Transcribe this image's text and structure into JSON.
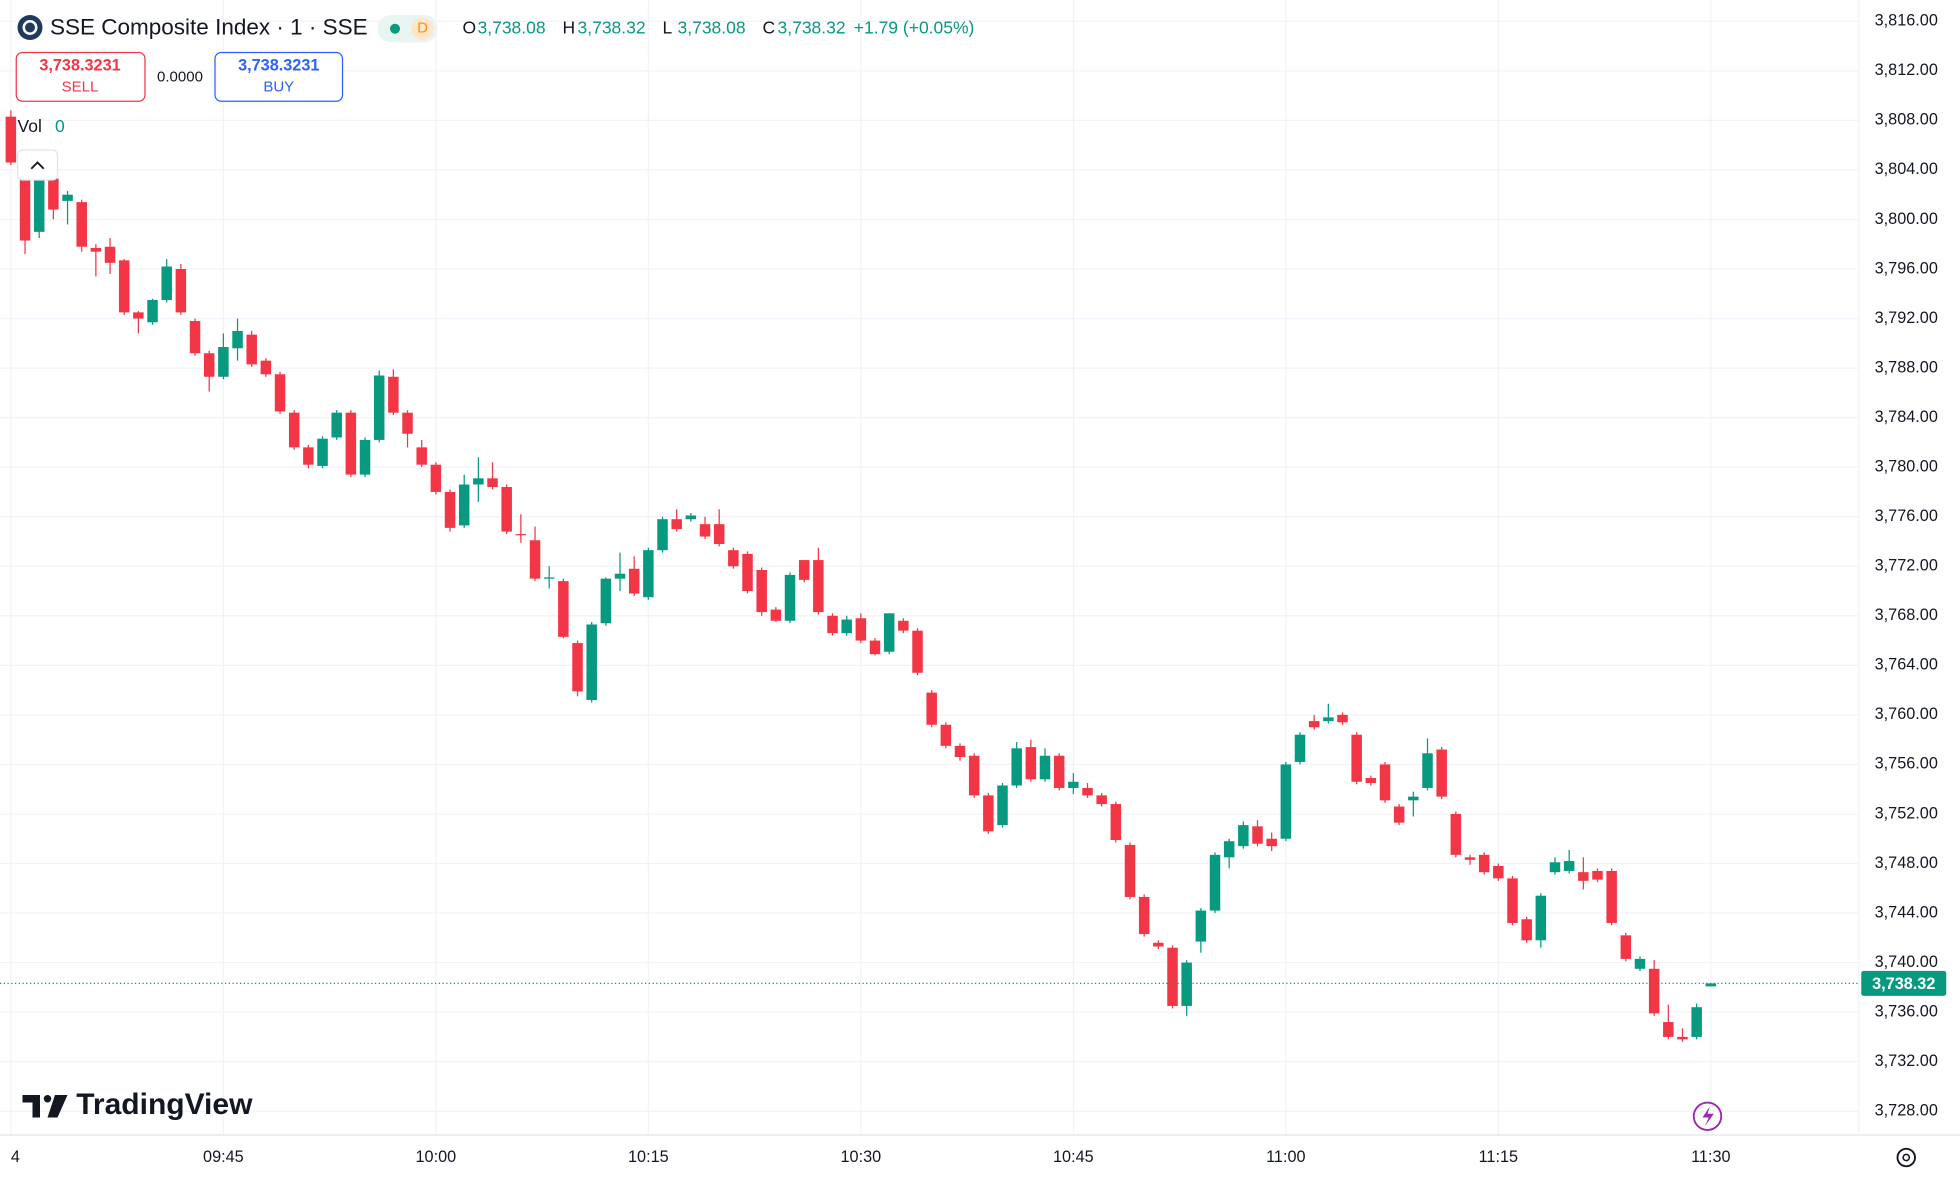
{
  "chart_data": {
    "type": "candlestick",
    "title": "SSE Composite Index · 1 · SSE",
    "categories": [
      "09:30",
      "09:31",
      "09:32",
      "09:33",
      "09:34",
      "09:35",
      "09:36",
      "09:37",
      "09:38",
      "09:39",
      "09:40",
      "09:41",
      "09:42",
      "09:43",
      "09:44",
      "09:45",
      "09:46",
      "09:47",
      "09:48",
      "09:49",
      "09:50",
      "09:51",
      "09:52",
      "09:53",
      "09:54",
      "09:55",
      "09:56",
      "09:57",
      "09:58",
      "09:59",
      "10:00",
      "10:01",
      "10:02",
      "10:03",
      "10:04",
      "10:05",
      "10:06",
      "10:07",
      "10:08",
      "10:09",
      "10:10",
      "10:11",
      "10:12",
      "10:13",
      "10:14",
      "10:15",
      "10:16",
      "10:17",
      "10:18",
      "10:19",
      "10:20",
      "10:21",
      "10:22",
      "10:23",
      "10:24",
      "10:25",
      "10:26",
      "10:27",
      "10:28",
      "10:29",
      "10:30",
      "10:31",
      "10:32",
      "10:33",
      "10:34",
      "10:35",
      "10:36",
      "10:37",
      "10:38",
      "10:39",
      "10:40",
      "10:41",
      "10:42",
      "10:43",
      "10:44",
      "10:45",
      "10:46",
      "10:47",
      "10:48",
      "10:49",
      "10:50",
      "10:51",
      "10:52",
      "10:53",
      "10:54",
      "10:55",
      "10:56",
      "10:57",
      "10:58",
      "10:59",
      "11:00",
      "11:01",
      "11:02",
      "11:03",
      "11:04",
      "11:05",
      "11:06",
      "11:07",
      "11:08",
      "11:09",
      "11:10",
      "11:11",
      "11:12",
      "11:13",
      "11:14",
      "11:15",
      "11:16",
      "11:17",
      "11:18",
      "11:19",
      "11:20",
      "11:21",
      "11:22",
      "11:23",
      "11:24",
      "11:25",
      "11:26",
      "11:27",
      "11:28",
      "11:29",
      "11:30"
    ],
    "open": [
      3808.3,
      3803.6,
      3799.0,
      3803.3,
      3801.5,
      3801.4,
      3797.7,
      3797.8,
      3796.7,
      3792.5,
      3791.7,
      3793.5,
      3796.0,
      3791.8,
      3789.2,
      3787.3,
      3789.6,
      3790.7,
      3788.6,
      3787.5,
      3784.4,
      3781.6,
      3780.1,
      3782.4,
      3784.4,
      3779.4,
      3782.2,
      3787.3,
      3784.4,
      3781.6,
      3780.2,
      3778.0,
      3775.3,
      3778.6,
      3779.1,
      3778.4,
      3774.6,
      3774.1,
      3771.0,
      3770.8,
      3765.8,
      3761.2,
      3767.4,
      3771.0,
      3771.8,
      3769.5,
      3773.3,
      3775.8,
      3775.8,
      3775.4,
      3775.4,
      3773.3,
      3773.0,
      3771.7,
      3768.5,
      3767.6,
      3772.5,
      3772.5,
      3768.0,
      3766.6,
      3767.8,
      3766.0,
      3765.1,
      3767.6,
      3766.8,
      3761.8,
      3759.2,
      3757.5,
      3756.7,
      3753.5,
      3751.1,
      3754.3,
      3757.4,
      3754.8,
      3756.7,
      3754.1,
      3754.1,
      3753.5,
      3752.8,
      3749.5,
      3745.3,
      3741.6,
      3741.2,
      3736.5,
      3741.7,
      3744.2,
      3748.5,
      3749.4,
      3751.0,
      3750.0,
      3750.0,
      3756.2,
      3759.5,
      3759.5,
      3760.0,
      3758.4,
      3754.9,
      3756.0,
      3752.6,
      3753.1,
      3754.1,
      3757.2,
      3752.0,
      3748.5,
      3748.7,
      3747.8,
      3746.8,
      3743.5,
      3741.8,
      3747.3,
      3747.4,
      3747.3,
      3747.4,
      3747.4,
      3742.2,
      3739.5,
      3739.5,
      3735.2,
      3734.0,
      3734.0,
      3738.08
    ],
    "high": [
      3808.8,
      3804.0,
      3804.0,
      3804.2,
      3802.3,
      3801.6,
      3798.0,
      3798.5,
      3796.8,
      3792.6,
      3793.6,
      3796.8,
      3796.4,
      3792.0,
      3789.4,
      3790.8,
      3792.0,
      3791.0,
      3788.8,
      3787.7,
      3784.6,
      3781.8,
      3782.5,
      3784.6,
      3784.6,
      3782.4,
      3787.8,
      3787.9,
      3784.6,
      3782.2,
      3780.4,
      3778.2,
      3779.4,
      3780.8,
      3780.4,
      3778.6,
      3776.2,
      3775.2,
      3772.0,
      3771.0,
      3766.0,
      3767.5,
      3771.1,
      3773.1,
      3772.8,
      3773.5,
      3776.0,
      3776.6,
      3776.3,
      3776.0,
      3776.6,
      3773.5,
      3773.2,
      3771.9,
      3768.7,
      3771.5,
      3772.5,
      3773.5,
      3768.2,
      3768.0,
      3768.2,
      3766.2,
      3768.2,
      3767.8,
      3767.0,
      3762.0,
      3759.4,
      3757.7,
      3756.9,
      3753.7,
      3754.5,
      3757.8,
      3758.0,
      3757.3,
      3756.9,
      3755.3,
      3754.5,
      3753.7,
      3753.0,
      3749.7,
      3745.5,
      3741.8,
      3741.4,
      3740.2,
      3744.4,
      3748.9,
      3750.0,
      3751.4,
      3751.5,
      3750.5,
      3756.2,
      3758.6,
      3760.0,
      3760.9,
      3760.2,
      3758.6,
      3755.1,
      3756.2,
      3752.8,
      3753.8,
      3758.1,
      3757.4,
      3752.2,
      3748.7,
      3748.9,
      3748.0,
      3747.0,
      3743.7,
      3745.6,
      3748.5,
      3749.1,
      3748.5,
      3747.6,
      3747.6,
      3742.4,
      3740.5,
      3740.2,
      3736.6,
      3734.7,
      3736.7,
      3738.32
    ],
    "low": [
      3804.4,
      3797.2,
      3798.5,
      3800.0,
      3799.6,
      3797.4,
      3795.4,
      3795.6,
      3792.3,
      3790.8,
      3791.5,
      3793.3,
      3792.3,
      3789.0,
      3786.1,
      3787.1,
      3788.6,
      3788.1,
      3787.3,
      3784.3,
      3781.4,
      3779.9,
      3779.9,
      3782.2,
      3779.2,
      3779.2,
      3782.0,
      3784.2,
      3781.6,
      3780.0,
      3777.8,
      3774.8,
      3775.1,
      3777.2,
      3778.2,
      3774.6,
      3773.9,
      3770.8,
      3770.2,
      3766.2,
      3761.5,
      3761.0,
      3767.2,
      3770.0,
      3769.6,
      3769.3,
      3773.1,
      3774.8,
      3775.6,
      3774.2,
      3773.6,
      3771.8,
      3769.8,
      3768.0,
      3767.5,
      3767.4,
      3770.7,
      3768.1,
      3766.4,
      3766.4,
      3765.8,
      3764.8,
      3764.9,
      3766.6,
      3763.2,
      3759.0,
      3757.3,
      3756.3,
      3753.3,
      3750.4,
      3750.9,
      3754.1,
      3754.6,
      3754.6,
      3753.9,
      3753.6,
      3753.3,
      3752.6,
      3749.7,
      3745.1,
      3742.1,
      3741.1,
      3736.3,
      3735.7,
      3740.8,
      3744.0,
      3747.6,
      3749.2,
      3749.4,
      3749.0,
      3749.8,
      3756.0,
      3758.8,
      3759.3,
      3759.2,
      3754.4,
      3754.3,
      3752.9,
      3751.1,
      3751.8,
      3753.9,
      3753.2,
      3748.5,
      3747.9,
      3747.1,
      3746.6,
      3743.0,
      3741.6,
      3741.2,
      3747.1,
      3747.2,
      3745.9,
      3746.5,
      3743.0,
      3740.1,
      3739.3,
      3735.7,
      3733.8,
      3733.6,
      3733.8,
      3738.08
    ],
    "close": [
      3804.6,
      3798.3,
      3803.3,
      3800.8,
      3802.0,
      3797.8,
      3797.4,
      3796.5,
      3792.5,
      3792.0,
      3793.5,
      3796.2,
      3792.5,
      3789.2,
      3787.3,
      3789.7,
      3791.0,
      3788.3,
      3787.5,
      3784.5,
      3781.6,
      3780.2,
      3782.3,
      3784.4,
      3779.4,
      3782.2,
      3787.4,
      3784.4,
      3782.7,
      3780.2,
      3778.0,
      3775.1,
      3778.6,
      3779.1,
      3778.4,
      3774.8,
      3774.5,
      3771.0,
      3771.1,
      3766.3,
      3761.9,
      3767.3,
      3771.0,
      3771.4,
      3769.8,
      3773.3,
      3775.8,
      3775.0,
      3776.1,
      3774.4,
      3773.8,
      3772.0,
      3770.0,
      3768.3,
      3767.6,
      3771.3,
      3770.9,
      3768.3,
      3766.6,
      3767.7,
      3766.0,
      3764.9,
      3768.2,
      3766.8,
      3763.4,
      3759.2,
      3757.5,
      3756.6,
      3753.5,
      3750.6,
      3754.3,
      3757.3,
      3754.8,
      3756.7,
      3754.1,
      3754.6,
      3753.5,
      3752.8,
      3749.9,
      3745.3,
      3742.3,
      3741.3,
      3736.5,
      3740.0,
      3744.2,
      3748.7,
      3749.8,
      3751.1,
      3749.6,
      3749.4,
      3756.0,
      3758.4,
      3759.0,
      3759.8,
      3759.4,
      3754.6,
      3754.5,
      3753.1,
      3751.3,
      3753.4,
      3756.9,
      3753.4,
      3748.7,
      3748.3,
      3747.3,
      3746.8,
      3743.2,
      3741.8,
      3745.4,
      3748.1,
      3748.2,
      3746.6,
      3746.7,
      3743.2,
      3740.3,
      3740.3,
      3735.9,
      3734.0,
      3733.8,
      3736.4,
      3738.32
    ],
    "up_color": "#089981",
    "down_color": "#f23645",
    "ylim": [
      3726.08,
      3817.72
    ],
    "yticks": [
      {
        "value": 3728,
        "label": "3,728.00"
      },
      {
        "value": 3732,
        "label": "3,732.00"
      },
      {
        "value": 3736,
        "label": "3,736.00"
      },
      {
        "value": 3740,
        "label": "3,740.00"
      },
      {
        "value": 3744,
        "label": "3,744.00"
      },
      {
        "value": 3748,
        "label": "3,748.00"
      },
      {
        "value": 3752,
        "label": "3,752.00"
      },
      {
        "value": 3756,
        "label": "3,756.00"
      },
      {
        "value": 3760,
        "label": "3,760.00"
      },
      {
        "value": 3764,
        "label": "3,764.00"
      },
      {
        "value": 3768,
        "label": "3,768.00"
      },
      {
        "value": 3772,
        "label": "3,772.00"
      },
      {
        "value": 3776,
        "label": "3,776.00"
      },
      {
        "value": 3780,
        "label": "3,780.00"
      },
      {
        "value": 3784,
        "label": "3,784.00"
      },
      {
        "value": 3788,
        "label": "3,788.00"
      },
      {
        "value": 3792,
        "label": "3,792.00"
      },
      {
        "value": 3796,
        "label": "3,796.00"
      },
      {
        "value": 3800,
        "label": "3,800.00"
      },
      {
        "value": 3804,
        "label": "3,804.00"
      },
      {
        "value": 3808,
        "label": "3,808.00"
      },
      {
        "value": 3812,
        "label": "3,812.00"
      },
      {
        "value": 3816,
        "label": "3,816.00"
      }
    ],
    "xticks": [
      {
        "value": "09:30",
        "label": "4"
      },
      "09:45",
      "10:00",
      "10:15",
      "10:30",
      "10:45",
      "11:00",
      "11:15",
      "11:30"
    ],
    "grid": true,
    "last_price": {
      "value": 3738.32,
      "label": "3,738.32"
    }
  },
  "header": {
    "badge": "D",
    "ohlc": [
      {
        "key": "O",
        "value": "3,738.08"
      },
      {
        "key": "H",
        "value": "3,738.32"
      },
      {
        "key": "L",
        "value": "3,738.08"
      },
      {
        "key": "C",
        "value": "3,738.32"
      }
    ],
    "change": "+1.79 (+0.05%)"
  },
  "trade": {
    "sell_price": "3,738.3231",
    "sell_label": "SELL",
    "spread": "0.0000",
    "buy_price": "3,738.3231",
    "buy_label": "BUY"
  },
  "volume": {
    "label": "Vol",
    "value": "0"
  },
  "logo": "TradingView"
}
